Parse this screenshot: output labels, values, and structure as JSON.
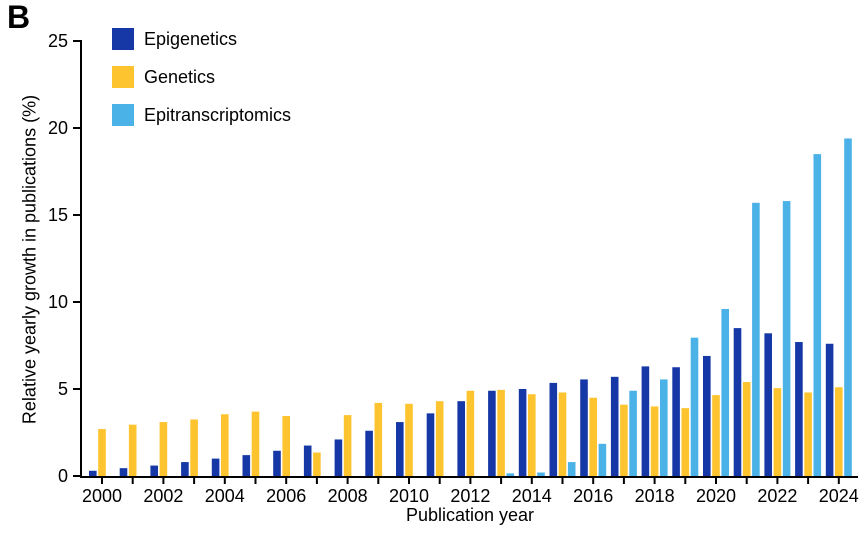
{
  "panel_label": "B",
  "chart_data": {
    "type": "bar",
    "title": "",
    "xlabel": "Publication year",
    "ylabel": "Relative yearly growth in publications (%)",
    "ylim": [
      0,
      25
    ],
    "yticks": [
      0,
      5,
      10,
      15,
      20,
      25
    ],
    "categories": [
      2000,
      2001,
      2002,
      2003,
      2004,
      2005,
      2006,
      2007,
      2008,
      2009,
      2010,
      2011,
      2012,
      2013,
      2014,
      2015,
      2016,
      2017,
      2018,
      2019,
      2020,
      2021,
      2022,
      2023,
      2024
    ],
    "xtick_labels": [
      "2000",
      "2002",
      "2004",
      "2006",
      "2008",
      "2010",
      "2012",
      "2014",
      "2016",
      "2018",
      "2020",
      "2022",
      "2024"
    ],
    "grid": false,
    "legend_position": "top-left-inside",
    "axis_color": "#000000",
    "series": [
      {
        "name": "Epigenetics",
        "color": "#1538A6",
        "values": [
          0.3,
          0.45,
          0.6,
          0.8,
          1.0,
          1.2,
          1.45,
          1.75,
          2.1,
          2.6,
          3.1,
          3.6,
          4.3,
          4.9,
          5.0,
          5.35,
          5.55,
          5.7,
          6.3,
          6.25,
          6.9,
          8.5,
          8.2,
          7.7,
          7.6
        ]
      },
      {
        "name": "Genetics",
        "color": "#FDC42F",
        "values": [
          2.7,
          2.95,
          3.1,
          3.25,
          3.55,
          3.7,
          3.45,
          1.35,
          3.5,
          4.2,
          4.15,
          4.3,
          4.9,
          4.95,
          4.7,
          4.8,
          4.5,
          4.1,
          4.0,
          3.9,
          4.65,
          5.4,
          5.05,
          4.8,
          5.1
        ]
      },
      {
        "name": "Epitranscriptomics",
        "color": "#4BB2E8",
        "values": [
          0,
          0,
          0,
          0,
          0,
          0,
          0,
          0,
          0,
          0,
          0,
          0,
          0,
          0.15,
          0.2,
          0.8,
          1.85,
          4.9,
          5.55,
          7.95,
          9.6,
          15.7,
          15.8,
          18.5,
          19.4
        ]
      }
    ]
  }
}
